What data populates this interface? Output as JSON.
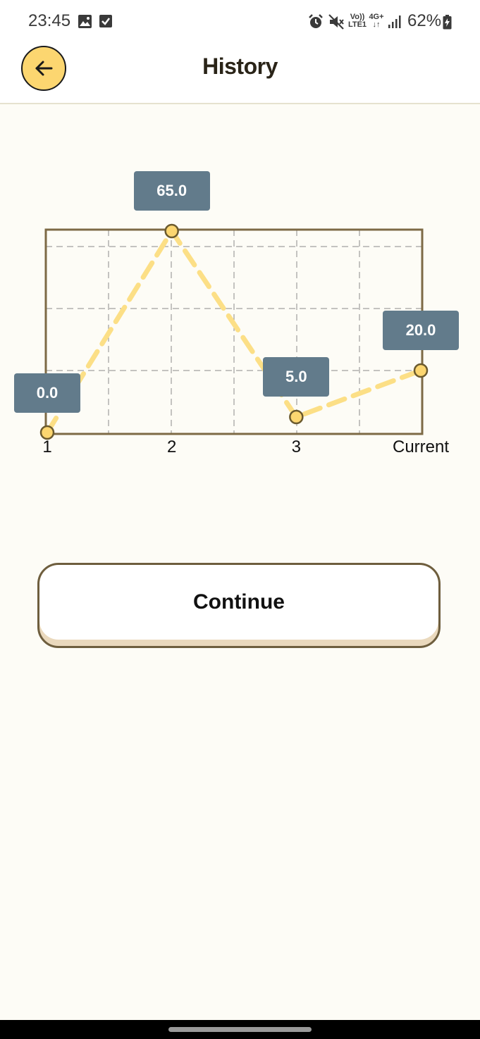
{
  "status_bar": {
    "time": "23:45",
    "left_icons": [
      "gallery-icon",
      "checkbox-icon"
    ],
    "right_icons": [
      "alarm-icon",
      "mute-icon",
      "volte-icon",
      "4g-data-icon",
      "signal-icon",
      "battery-icon"
    ],
    "volte_top": "Vo))",
    "volte_bottom": "LTE1",
    "network_type": "4G+",
    "battery_percent": "62%"
  },
  "header": {
    "title": "History",
    "back_icon": "arrow-left-icon",
    "colors": {
      "back_button_bg": "#fcd670"
    }
  },
  "chart_data": {
    "type": "line",
    "categories": [
      "1",
      "2",
      "3",
      "Current"
    ],
    "values": [
      0.0,
      65.0,
      5.0,
      20.0
    ],
    "value_labels": [
      "0.0",
      "65.0",
      "5.0",
      "20.0"
    ],
    "ylim": [
      0,
      65
    ],
    "grid": true,
    "line_style": "dashed",
    "colors": {
      "line": "#fcdf86",
      "point_fill": "#fcd670",
      "frame": "#7d6a45",
      "tag_bg": "#627b8b"
    }
  },
  "actions": {
    "continue_label": "Continue"
  }
}
